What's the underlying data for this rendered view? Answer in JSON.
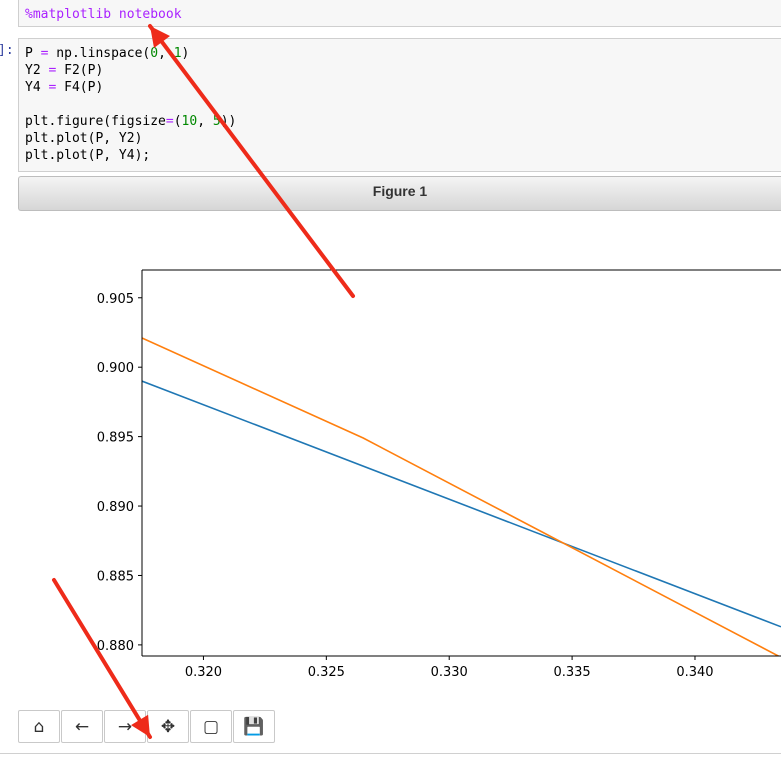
{
  "cell1": {
    "magic": "%matplotlib notebook"
  },
  "cell2": {
    "prompt": "]:",
    "lines": [
      [
        {
          "t": "P ",
          "c": ""
        },
        {
          "t": "=",
          "c": "op"
        },
        {
          "t": " np.linspace(",
          "c": ""
        },
        {
          "t": "0",
          "c": "num"
        },
        {
          "t": ", ",
          "c": ""
        },
        {
          "t": "1",
          "c": "num"
        },
        {
          "t": ")",
          "c": ""
        }
      ],
      [
        {
          "t": "Y2 ",
          "c": ""
        },
        {
          "t": "=",
          "c": "op"
        },
        {
          "t": " F2(P)",
          "c": ""
        }
      ],
      [
        {
          "t": "Y4 ",
          "c": ""
        },
        {
          "t": "=",
          "c": "op"
        },
        {
          "t": " F4(P)",
          "c": ""
        }
      ],
      [
        {
          "t": "",
          "c": ""
        }
      ],
      [
        {
          "t": "plt.figure(figsize",
          "c": ""
        },
        {
          "t": "=",
          "c": "op"
        },
        {
          "t": "(",
          "c": ""
        },
        {
          "t": "10",
          "c": "num"
        },
        {
          "t": ", ",
          "c": ""
        },
        {
          "t": "5",
          "c": "num"
        },
        {
          "t": "))",
          "c": ""
        }
      ],
      [
        {
          "t": "plt.plot(P, Y2)",
          "c": ""
        }
      ],
      [
        {
          "t": "plt.plot(P, Y4);",
          "c": ""
        }
      ]
    ]
  },
  "figure": {
    "title": "Figure 1"
  },
  "toolbar": [
    {
      "name": "home-icon",
      "glyph": "⌂"
    },
    {
      "name": "back-arrow-icon",
      "glyph": "←"
    },
    {
      "name": "forward-arrow-icon",
      "glyph": "→"
    },
    {
      "name": "move-pan-icon",
      "glyph": "✥"
    },
    {
      "name": "zoom-rect-icon",
      "glyph": "▢"
    },
    {
      "name": "save-icon",
      "glyph": "💾"
    }
  ],
  "chart_data": {
    "type": "line",
    "title": "",
    "xlabel": "",
    "ylabel": "",
    "xlim": [
      0.3175,
      0.3435
    ],
    "ylim": [
      0.8792,
      0.907
    ],
    "xticks": [
      0.32,
      0.325,
      0.33,
      0.335,
      0.34
    ],
    "xtick_labels": [
      "0.320",
      "0.325",
      "0.330",
      "0.335",
      "0.340"
    ],
    "yticks": [
      0.88,
      0.885,
      0.89,
      0.895,
      0.9,
      0.905
    ],
    "ytick_labels": [
      "0.880",
      "0.885",
      "0.890",
      "0.895",
      "0.900",
      "0.905"
    ],
    "series": [
      {
        "color": "#1f77b4",
        "points": [
          [
            0.3175,
            0.899
          ],
          [
            0.3435,
            0.8813
          ]
        ]
      },
      {
        "color": "#ff7f0e",
        "points": [
          [
            0.3175,
            0.9021
          ],
          [
            0.3265,
            0.8949
          ],
          [
            0.3435,
            0.8791
          ]
        ]
      }
    ]
  },
  "annotations": {
    "arrow_color": "#ee2b1a"
  }
}
